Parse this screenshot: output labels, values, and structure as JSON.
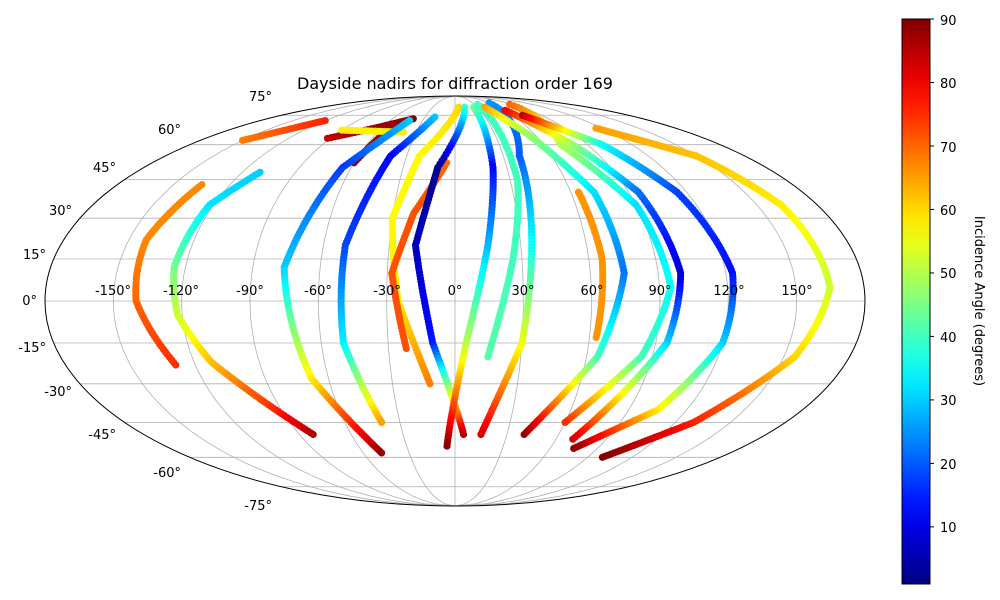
{
  "chart_data": {
    "type": "scatter",
    "projection": "mollweide",
    "title": "Dayside nadirs for diffraction order 169",
    "grid": true,
    "x_tick_labels": [
      "-150°",
      "-120°",
      "-90°",
      "-60°",
      "-30°",
      "0°",
      "30°",
      "60°",
      "90°",
      "120°",
      "150°"
    ],
    "y_tick_labels": [
      "-75°",
      "-60°",
      "-45°",
      "-30°",
      "-15°",
      "0°",
      "15°",
      "30°",
      "45°",
      "60°",
      "75°"
    ],
    "colorbar": {
      "label": "Incidence Angle (degrees)",
      "colormap": "jet",
      "range": [
        1,
        90
      ],
      "tick_labels": [
        "10",
        "20",
        "30",
        "40",
        "50",
        "60",
        "70",
        "80",
        "90"
      ],
      "placement": "right"
    },
    "tracks": [
      {
        "lon": [
          -150,
          -120
        ],
        "lat": [
          62,
          72
        ],
        "inc": [
          68,
          76
        ]
      },
      {
        "lon": [
          -92,
          -40
        ],
        "lat": [
          63,
          73
        ],
        "inc": [
          84,
          90
        ]
      },
      {
        "lon": [
          -60,
          -52
        ],
        "lat": [
          52,
          70
        ],
        "inc": [
          88,
          88
        ]
      },
      {
        "lon": [
          -90,
          -40
        ],
        "lat": [
          67,
          66
        ],
        "inc": [
          58,
          58
        ]
      },
      {
        "lon": [
          -110,
          -122,
          -125,
          -122,
          -112,
          -95,
          -82
        ],
        "lat": [
          48,
          35,
          12,
          -5,
          -22,
          -38,
          -50
        ],
        "inc": [
          30,
          32,
          44,
          52,
          62,
          74,
          86
        ]
      },
      {
        "lon": [
          -135,
          -142,
          -140,
          -129
        ],
        "lat": [
          43,
          22,
          0,
          -23
        ],
        "inc": [
          67,
          67,
          70,
          75
        ]
      },
      {
        "lon": [
          -42,
          -65,
          -76,
          -68,
          -48
        ],
        "lat": [
          72,
          50,
          12,
          -28,
          -58
        ],
        "inc": [
          30,
          17,
          30,
          58,
          88
        ]
      },
      {
        "lon": [
          -20,
          -40,
          -50,
          -50,
          -40
        ],
        "lat": [
          74,
          55,
          20,
          -15,
          -45
        ],
        "inc": [
          30,
          12,
          18,
          33,
          65
        ]
      },
      {
        "lon": [
          5,
          -22,
          -30,
          -25,
          -12
        ],
        "lat": [
          80,
          55,
          30,
          0,
          -30
        ],
        "inc": [
          60,
          57,
          57,
          58,
          68
        ]
      },
      {
        "lon": [
          -5,
          -20,
          -28,
          -22
        ],
        "lat": [
          52,
          32,
          10,
          -17
        ],
        "inc": [
          70,
          72,
          72,
          72
        ]
      },
      {
        "lon": [
          13,
          -10,
          -18,
          -10,
          5
        ],
        "lat": [
          80,
          50,
          20,
          -15,
          -50
        ],
        "inc": [
          40,
          2,
          6,
          14,
          86
        ]
      },
      {
        "lon": [
          25,
          22,
          15,
          5,
          -5
        ],
        "lat": [
          80,
          50,
          20,
          -15,
          -55
        ],
        "inc": [
          45,
          12,
          28,
          50,
          89
        ]
      },
      {
        "lon": [
          35,
          34,
          26,
          15
        ],
        "lat": [
          82,
          45,
          15,
          -20
        ],
        "inc": [
          40,
          40,
          40,
          42
        ]
      },
      {
        "lon": [
          58,
          40,
          35,
          30,
          15
        ],
        "lat": [
          83,
          55,
          20,
          -15,
          -50
        ],
        "inc": [
          25,
          20,
          35,
          55,
          82
        ]
      },
      {
        "lon": [
          40,
          55,
          72,
          75,
          65,
          40
        ],
        "lat": [
          80,
          65,
          40,
          10,
          -20,
          -50
        ],
        "inc": [
          65,
          48,
          32,
          22,
          40,
          88
        ]
      },
      {
        "lon": [
          85,
          72,
          90,
          95,
          85,
          60
        ],
        "lat": [
          82,
          60,
          35,
          5,
          -20,
          -45
        ],
        "inc": [
          70,
          50,
          32,
          35,
          40,
          75
        ]
      },
      {
        "lon": [
          60,
          80,
          95,
          100,
          95,
          70
        ],
        "lat": [
          78,
          60,
          40,
          10,
          -15,
          -52
        ],
        "inc": [
          80,
          48,
          22,
          8,
          30,
          82
        ]
      },
      {
        "lon": [
          64,
          66,
          63
        ],
        "lat": [
          40,
          15,
          -13
        ],
        "inc": [
          66,
          66,
          66
        ]
      },
      {
        "lon": [
          70,
          100,
          115,
          123,
          120,
          105,
          75
        ],
        "lat": [
          75,
          60,
          40,
          10,
          -15,
          -40,
          -56
        ],
        "inc": [
          85,
          35,
          18,
          13,
          30,
          58,
          88
        ]
      },
      {
        "lon": [
          115,
          150,
          162,
          165,
          155,
          130,
          100
        ],
        "lat": [
          68,
          55,
          35,
          5,
          -20,
          -45,
          -60
        ],
        "inc": [
          65,
          62,
          58,
          52,
          60,
          76,
          90
        ]
      }
    ]
  }
}
